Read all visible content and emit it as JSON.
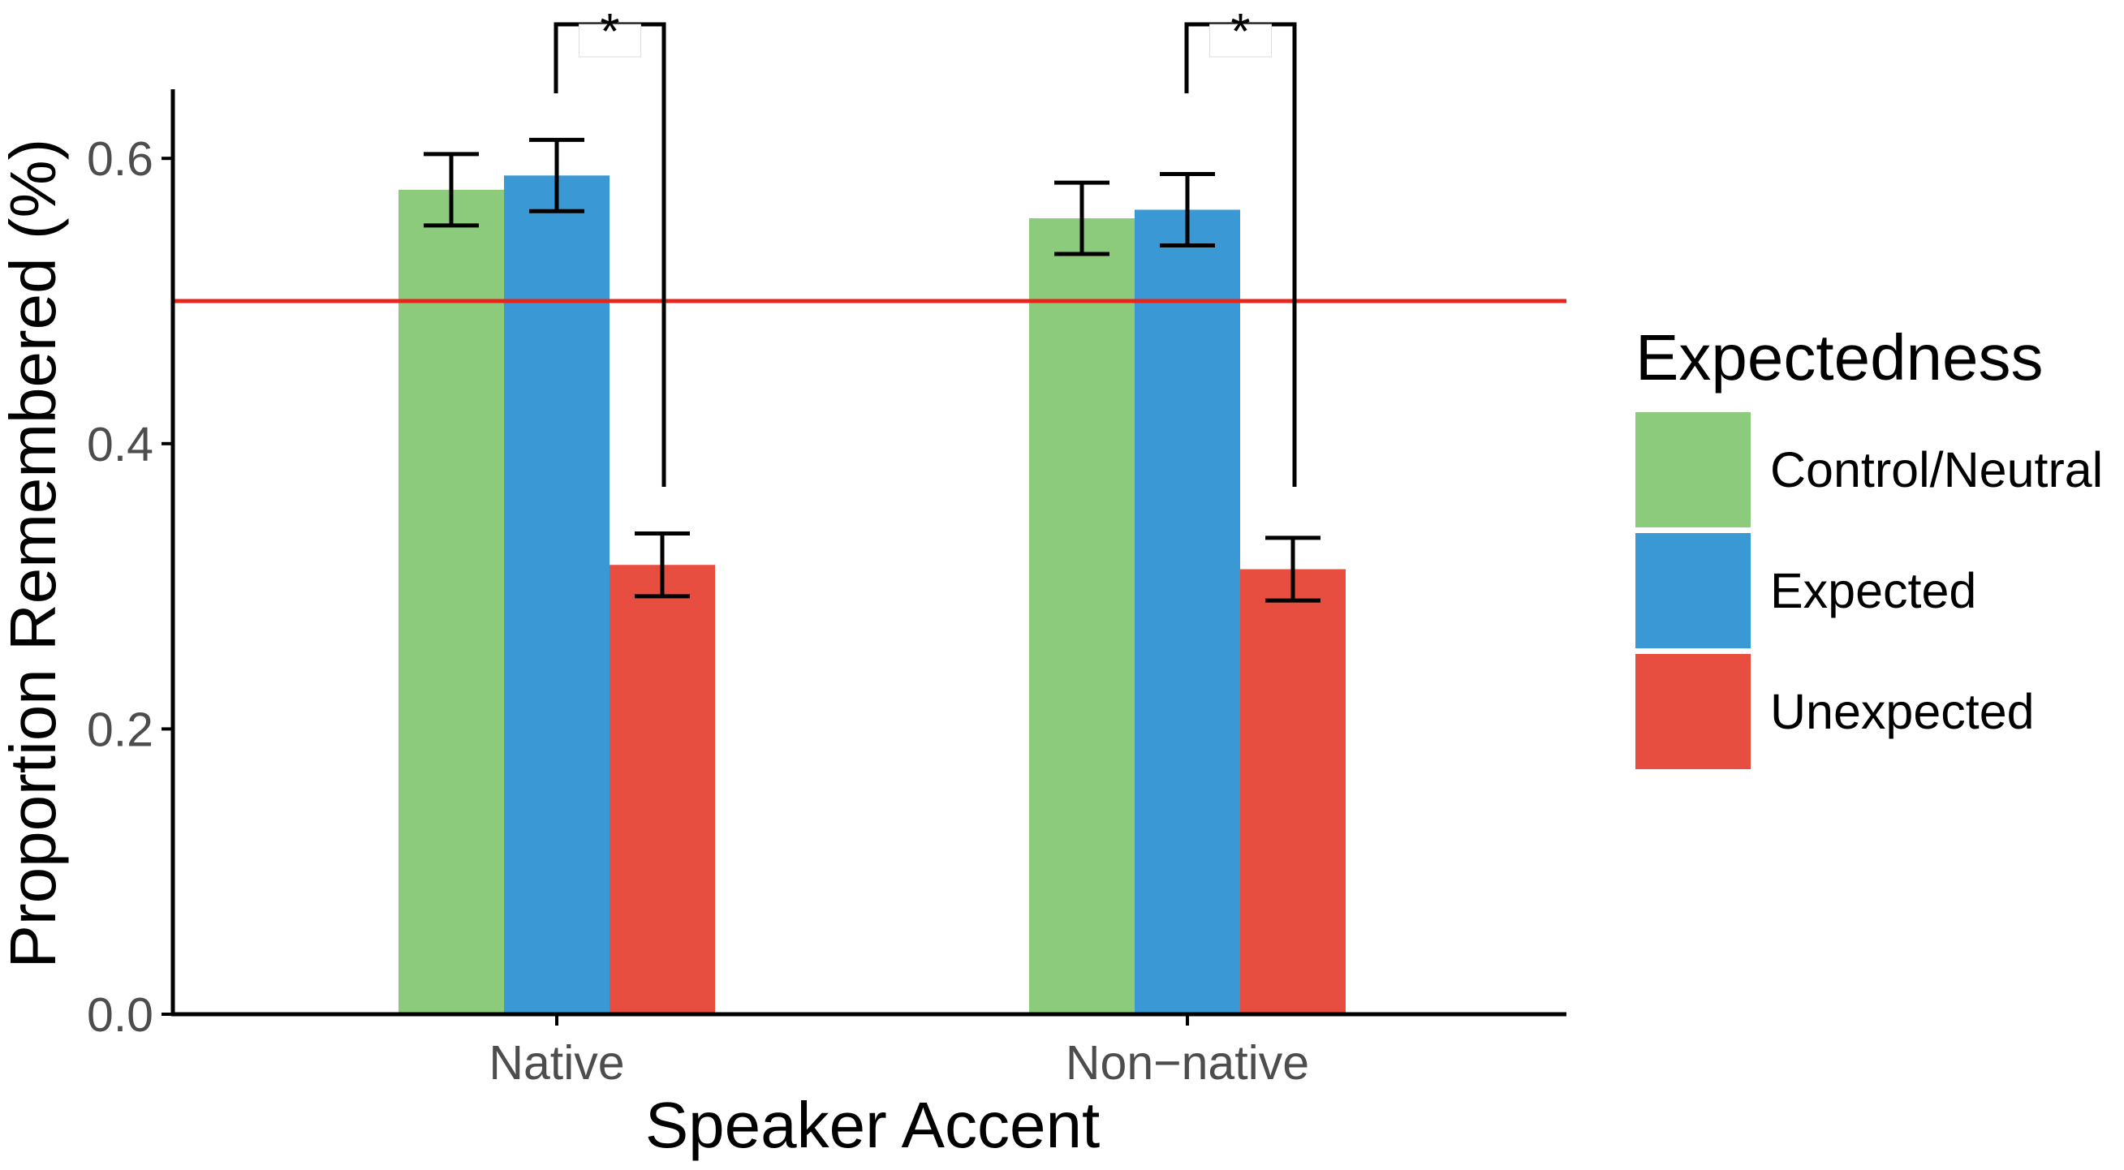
{
  "chart_data": {
    "type": "bar",
    "title": "",
    "xlabel": "Speaker Accent",
    "ylabel": "Proportion Remembered (%)",
    "ylim": [
      0,
      0.65
    ],
    "yticks": [
      "0.0",
      "0.2",
      "0.4",
      "0.6"
    ],
    "categories": [
      "Native",
      "Non−native"
    ],
    "series": [
      {
        "name": "Control/Neutral",
        "color": "#8BCB7B",
        "values": [
          0.578,
          0.558
        ],
        "error": [
          0.025,
          0.025
        ]
      },
      {
        "name": "Expected",
        "color": "#3A98D5",
        "values": [
          0.588,
          0.564
        ],
        "error": [
          0.025,
          0.025
        ]
      },
      {
        "name": "Unexpected",
        "color": "#E84E40",
        "values": [
          0.315,
          0.312
        ],
        "error": [
          0.022,
          0.022
        ]
      }
    ],
    "reference_line": {
      "y": 0.5,
      "color": "#E8241C"
    },
    "significance": [
      {
        "category": "Native",
        "from_series": "Expected",
        "to_series": "Unexpected",
        "label": "*"
      },
      {
        "category": "Non−native",
        "from_series": "Expected",
        "to_series": "Unexpected",
        "label": "*"
      }
    ],
    "legend": {
      "title": "Expectedness",
      "position": "right"
    },
    "grid": false
  }
}
